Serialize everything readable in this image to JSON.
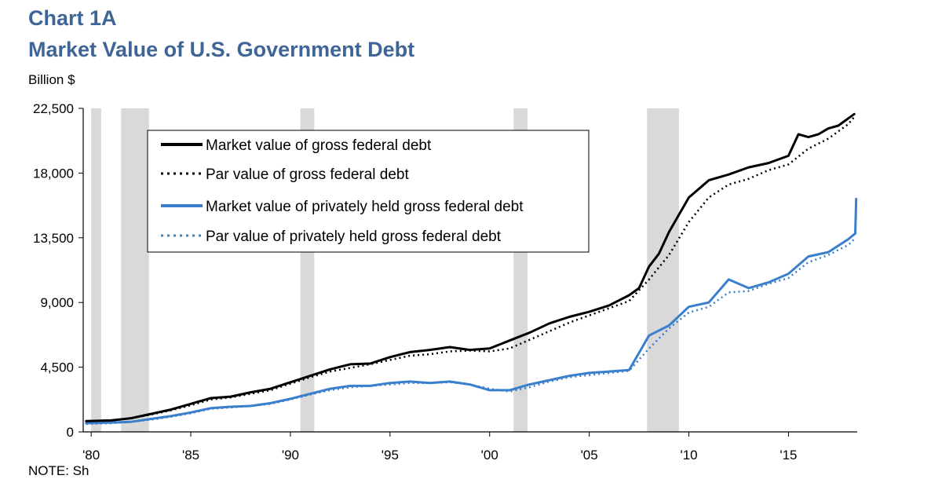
{
  "chart_data": {
    "type": "line",
    "title": "Chart 1A",
    "subtitle": "Market Value of U.S. Government Debt",
    "unit_label": "Billion $",
    "ylim": [
      0,
      22500
    ],
    "xlim": [
      1979.6,
      2018.45
    ],
    "y_ticks": [
      {
        "value": 0,
        "label": "0"
      },
      {
        "value": 4500,
        "label": "4,500"
      },
      {
        "value": 9000,
        "label": "9,000"
      },
      {
        "value": 13500,
        "label": "13,500"
      },
      {
        "value": 18000,
        "label": "18,000"
      },
      {
        "value": 22500,
        "label": "22,500"
      }
    ],
    "x_ticks": [
      {
        "value": 1980,
        "label": "'80"
      },
      {
        "value": 1985,
        "label": "'85"
      },
      {
        "value": 1990,
        "label": "'90"
      },
      {
        "value": 1995,
        "label": "'95"
      },
      {
        "value": 2000,
        "label": "'00"
      },
      {
        "value": 2005,
        "label": "'05"
      },
      {
        "value": 2010,
        "label": "'10"
      },
      {
        "value": 2015,
        "label": "'15"
      }
    ],
    "grid": false,
    "legend_position": "top-left",
    "recessions": [
      [
        1980.0,
        1980.5
      ],
      [
        1981.5,
        1982.9
      ],
      [
        1990.5,
        1991.2
      ],
      [
        2001.2,
        2001.9
      ],
      [
        2007.9,
        2009.5
      ]
    ],
    "series": [
      {
        "name": "Market value of gross federal debt",
        "color": "#000000",
        "style": "solid",
        "x": [
          1979.75,
          1981,
          1982,
          1983,
          1984,
          1985,
          1986,
          1987,
          1988,
          1989,
          1990,
          1991,
          1992,
          1993,
          1994,
          1995,
          1996,
          1997,
          1998,
          1999,
          2000,
          2001,
          2002,
          2003,
          2004,
          2005,
          2006,
          2007,
          2007.5,
          2008,
          2008.5,
          2009,
          2010,
          2011,
          2012,
          2013,
          2014,
          2015,
          2015.5,
          2016,
          2016.5,
          2017,
          2017.5,
          2018,
          2018.3
        ],
        "y": [
          750,
          800,
          950,
          1250,
          1550,
          1950,
          2350,
          2450,
          2750,
          3000,
          3450,
          3900,
          4350,
          4700,
          4750,
          5200,
          5550,
          5700,
          5900,
          5700,
          5800,
          6350,
          6900,
          7550,
          8000,
          8350,
          8800,
          9500,
          10000,
          11500,
          12400,
          13900,
          16300,
          17500,
          17900,
          18400,
          18700,
          19200,
          20700,
          20500,
          20700,
          21100,
          21300,
          21800,
          22100
        ]
      },
      {
        "name": "Par value of gross federal debt",
        "color": "#000000",
        "style": "dotted",
        "x": [
          1979.75,
          1981,
          1982,
          1983,
          1984,
          1985,
          1986,
          1987,
          1988,
          1989,
          1990,
          1991,
          1992,
          1993,
          1994,
          1995,
          1996,
          1997,
          1998,
          1999,
          2000,
          2001,
          2002,
          2003,
          2004,
          2005,
          2006,
          2007,
          2008,
          2009,
          2010,
          2011,
          2012,
          2013,
          2014,
          2015,
          2016,
          2017,
          2018,
          2018.3
        ],
        "y": [
          700,
          780,
          950,
          1200,
          1500,
          1850,
          2250,
          2400,
          2650,
          2900,
          3350,
          3800,
          4200,
          4450,
          4700,
          5000,
          5300,
          5400,
          5600,
          5650,
          5600,
          5800,
          6400,
          7000,
          7600,
          8100,
          8600,
          9100,
          10600,
          12300,
          14600,
          16300,
          17200,
          17600,
          18200,
          18600,
          19700,
          20400,
          21400,
          21900
        ]
      },
      {
        "name": "Market value of privately held gross federal debt",
        "color": "#3a7fcb",
        "style": "solid",
        "x": [
          1979.75,
          1981,
          1982,
          1983,
          1984,
          1985,
          1986,
          1987,
          1988,
          1989,
          1990,
          1991,
          1992,
          1993,
          1994,
          1995,
          1996,
          1997,
          1998,
          1999,
          2000,
          2000.5,
          2001,
          2002,
          2003,
          2004,
          2005,
          2006,
          2007,
          2008,
          2009,
          2010,
          2011,
          2012,
          2013,
          2014,
          2015,
          2016,
          2017,
          2018,
          2018.35,
          2018.4
        ],
        "y": [
          600,
          650,
          700,
          900,
          1100,
          1350,
          1650,
          1750,
          1800,
          2000,
          2300,
          2650,
          3000,
          3200,
          3200,
          3400,
          3500,
          3400,
          3500,
          3300,
          2900,
          2900,
          2900,
          3300,
          3600,
          3900,
          4100,
          4200,
          4300,
          6700,
          7400,
          8700,
          9000,
          10600,
          10000,
          10400,
          11000,
          12200,
          12500,
          13400,
          13800,
          16200
        ]
      },
      {
        "name": "Par value of privately held gross federal debt",
        "color": "#3a7fcb",
        "style": "dotted",
        "x": [
          1979.75,
          1981,
          1982,
          1983,
          1984,
          1985,
          1986,
          1987,
          1988,
          1989,
          1990,
          1991,
          1992,
          1993,
          1994,
          1995,
          1996,
          1997,
          1998,
          1999,
          2000,
          2001,
          2002,
          2003,
          2004,
          2005,
          2006,
          2007,
          2008,
          2009,
          2010,
          2011,
          2012,
          2013,
          2014,
          2015,
          2016,
          2017,
          2018,
          2018.3
        ],
        "y": [
          550,
          600,
          700,
          850,
          1050,
          1300,
          1600,
          1700,
          1800,
          1950,
          2250,
          2600,
          2900,
          3100,
          3200,
          3300,
          3400,
          3400,
          3450,
          3300,
          3000,
          2800,
          3100,
          3500,
          3800,
          3950,
          4100,
          4250,
          5800,
          7200,
          8300,
          8700,
          9700,
          9800,
          10300,
          10700,
          11800,
          12300,
          13000,
          13400
        ]
      }
    ]
  },
  "note": "NOTE: Sh"
}
